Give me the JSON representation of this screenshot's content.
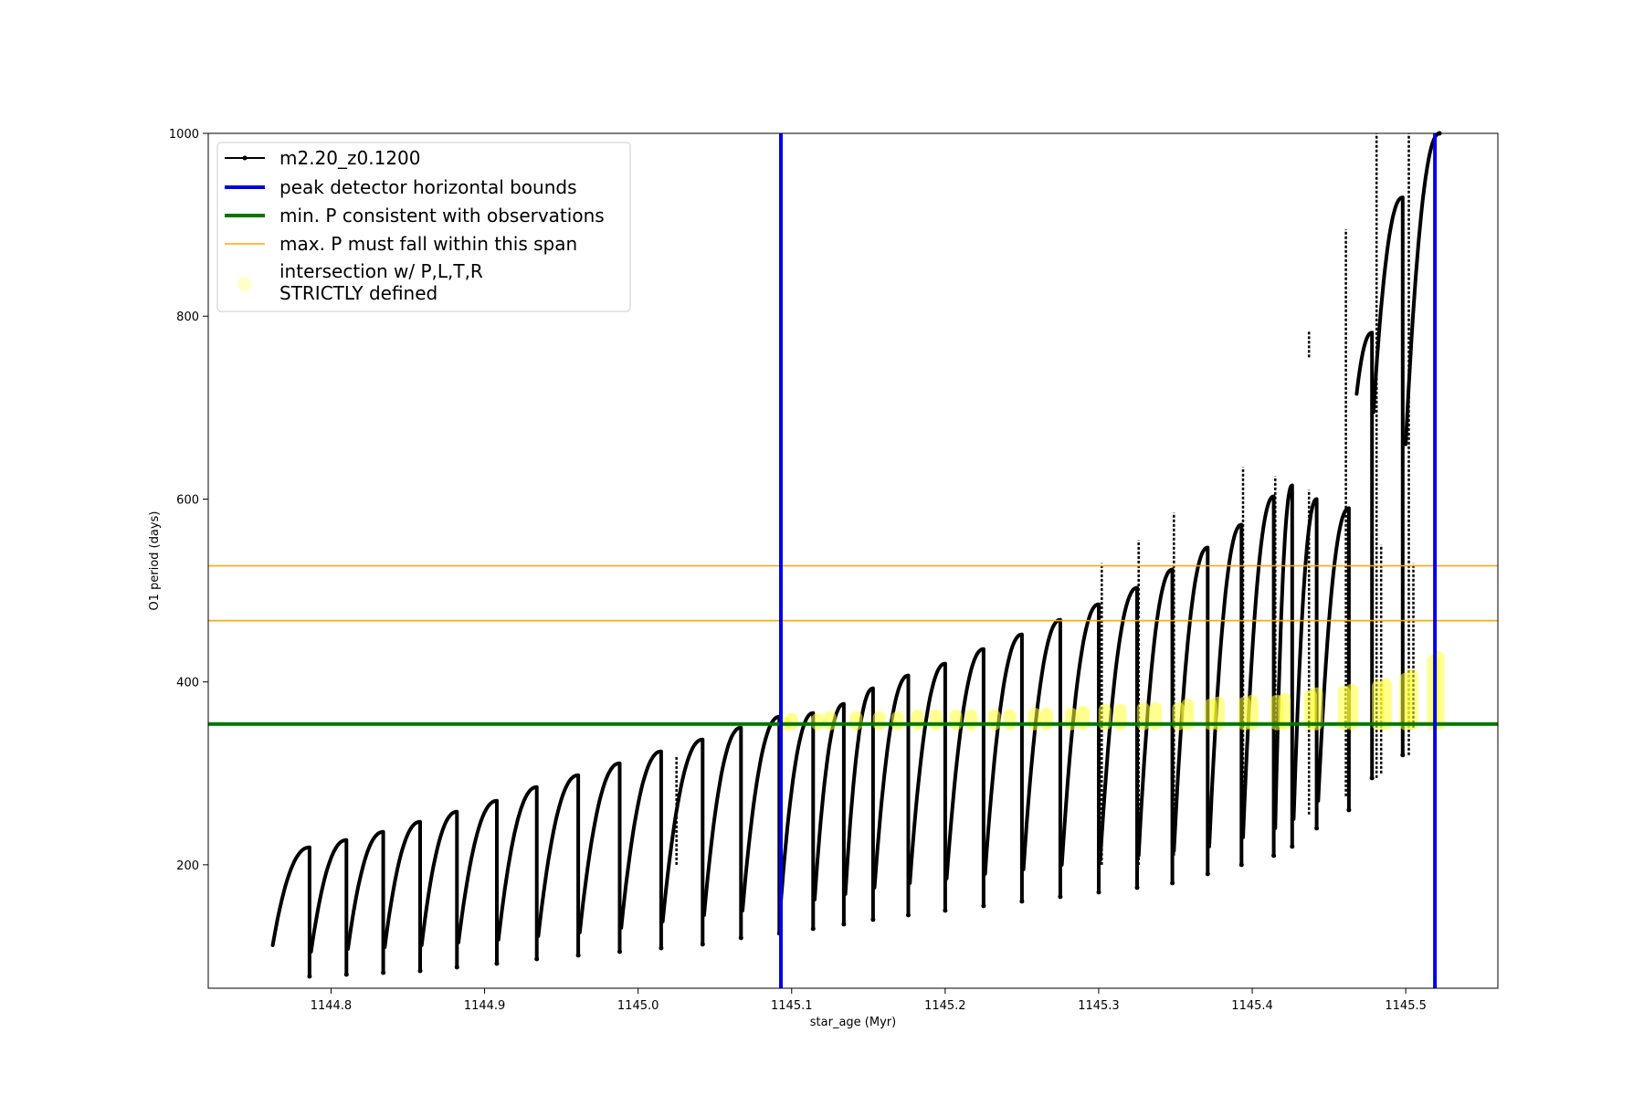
{
  "chart_data": {
    "type": "line",
    "title": "",
    "xlabel": "star_age (Myr)",
    "ylabel": "O1 period (days)",
    "xlim": [
      1144.72,
      1145.56
    ],
    "ylim": [
      65,
      1000
    ],
    "x_ticks": [
      "1144.8",
      "1144.9",
      "1145.0",
      "1145.1",
      "1145.2",
      "1145.3",
      "1145.4",
      "1145.5"
    ],
    "y_ticks": [
      "200",
      "400",
      "600",
      "800",
      "1000"
    ],
    "grid": false,
    "legend_position": "upper-left",
    "legend": [
      {
        "label": "m2.20_z0.1200",
        "style": "line-marker",
        "color": "#000000"
      },
      {
        "label": "peak detector horizontal bounds",
        "style": "thick-line",
        "color": "#0000ee"
      },
      {
        "label": "min. P consistent with observations",
        "style": "thick-line",
        "color": "#007700"
      },
      {
        "label": "max. P must fall within this span",
        "style": "thin-line",
        "color": "#ffa500"
      },
      {
        "label": "intersection w/ P,L,T,R",
        "label_line2": "STRICTLY defined",
        "style": "marker",
        "color": "#ffff66"
      }
    ],
    "series": [
      {
        "name": "m2.20_z0.1200",
        "color": "#000000",
        "note_pulses": "sawtooth: each pulse rises from start to peak, drops to dip, then restarts",
        "pulses": [
          {
            "x_start": 1144.762,
            "x_end": 1144.786,
            "start": 112,
            "peak": 219,
            "dip": 78
          },
          {
            "x_start": 1144.787,
            "x_end": 1144.81,
            "start": 105,
            "peak": 227,
            "dip": 80
          },
          {
            "x_start": 1144.811,
            "x_end": 1144.834,
            "start": 108,
            "peak": 236,
            "dip": 82
          },
          {
            "x_start": 1144.835,
            "x_end": 1144.858,
            "start": 110,
            "peak": 247,
            "dip": 84
          },
          {
            "x_start": 1144.859,
            "x_end": 1144.882,
            "start": 112,
            "peak": 258,
            "dip": 88
          },
          {
            "x_start": 1144.883,
            "x_end": 1144.908,
            "start": 115,
            "peak": 270,
            "dip": 92
          },
          {
            "x_start": 1144.909,
            "x_end": 1144.934,
            "start": 118,
            "peak": 285,
            "dip": 97
          },
          {
            "x_start": 1144.935,
            "x_end": 1144.961,
            "start": 122,
            "peak": 298,
            "dip": 101
          },
          {
            "x_start": 1144.962,
            "x_end": 1144.988,
            "start": 126,
            "peak": 311,
            "dip": 105
          },
          {
            "x_start": 1144.989,
            "x_end": 1145.015,
            "start": 131,
            "peak": 324,
            "dip": 109
          },
          {
            "x_start": 1145.016,
            "x_end": 1145.042,
            "start": 138,
            "peak": 337,
            "dip": 113
          },
          {
            "x_start": 1145.043,
            "x_end": 1145.067,
            "start": 145,
            "peak": 350,
            "dip": 120
          },
          {
            "x_start": 1145.068,
            "x_end": 1145.092,
            "start": 150,
            "peak": 362,
            "dip": 125
          },
          {
            "x_start": 1145.093,
            "x_end": 1145.114,
            "start": 160,
            "peak": 366,
            "dip": 130
          },
          {
            "x_start": 1145.115,
            "x_end": 1145.134,
            "start": 162,
            "peak": 376,
            "dip": 135
          },
          {
            "x_start": 1145.135,
            "x_end": 1145.153,
            "start": 168,
            "peak": 393,
            "dip": 140
          },
          {
            "x_start": 1145.154,
            "x_end": 1145.176,
            "start": 175,
            "peak": 407,
            "dip": 145
          },
          {
            "x_start": 1145.177,
            "x_end": 1145.2,
            "start": 180,
            "peak": 420,
            "dip": 150
          },
          {
            "x_start": 1145.201,
            "x_end": 1145.225,
            "start": 185,
            "peak": 436,
            "dip": 155
          },
          {
            "x_start": 1145.226,
            "x_end": 1145.25,
            "start": 190,
            "peak": 452,
            "dip": 160
          },
          {
            "x_start": 1145.251,
            "x_end": 1145.275,
            "start": 195,
            "peak": 468,
            "dip": 165
          },
          {
            "x_start": 1145.276,
            "x_end": 1145.3,
            "start": 200,
            "peak": 485,
            "dip": 170
          },
          {
            "x_start": 1145.301,
            "x_end": 1145.325,
            "start": 205,
            "peak": 503,
            "dip": 175
          },
          {
            "x_start": 1145.326,
            "x_end": 1145.348,
            "start": 210,
            "peak": 523,
            "dip": 180
          },
          {
            "x_start": 1145.349,
            "x_end": 1145.371,
            "start": 215,
            "peak": 547,
            "dip": 190
          },
          {
            "x_start": 1145.372,
            "x_end": 1145.393,
            "start": 220,
            "peak": 572,
            "dip": 200
          },
          {
            "x_start": 1145.394,
            "x_end": 1145.414,
            "start": 230,
            "peak": 603,
            "dip": 210
          },
          {
            "x_start": 1145.415,
            "x_end": 1145.426,
            "start": 240,
            "peak": 615,
            "dip": 220
          },
          {
            "x_start": 1145.427,
            "x_end": 1145.442,
            "start": 250,
            "peak": 600,
            "dip": 240
          },
          {
            "x_start": 1145.443,
            "x_end": 1145.463,
            "start": 270,
            "peak": 590,
            "dip": 260
          },
          {
            "x_start": 1145.468,
            "x_end": 1145.478,
            "start": 715,
            "peak": 782,
            "dip": 295
          },
          {
            "x_start": 1145.479,
            "x_end": 1145.498,
            "start": 695,
            "peak": 930,
            "dip": 320
          },
          {
            "x_start": 1145.5,
            "x_end": 1145.522,
            "start": 660,
            "peak": 1000,
            "dip": 1000
          }
        ],
        "spikes": [
          {
            "x": 1145.025,
            "low": 200,
            "high": 320
          },
          {
            "x": 1145.302,
            "low": 200,
            "high": 530
          },
          {
            "x": 1145.326,
            "low": 200,
            "high": 555
          },
          {
            "x": 1145.349,
            "low": 210,
            "high": 585
          },
          {
            "x": 1145.394,
            "low": 230,
            "high": 635
          },
          {
            "x": 1145.415,
            "low": 240,
            "high": 625
          },
          {
            "x": 1145.437,
            "low": 255,
            "high": 610
          },
          {
            "x": 1145.437,
            "low": 755,
            "high": 785
          },
          {
            "x": 1145.461,
            "low": 275,
            "high": 895
          },
          {
            "x": 1145.481,
            "low": 295,
            "high": 1000
          },
          {
            "x": 1145.484,
            "low": 300,
            "high": 550
          },
          {
            "x": 1145.502,
            "low": 320,
            "high": 1000
          },
          {
            "x": 1145.505,
            "low": 350,
            "high": 530
          }
        ]
      }
    ],
    "vertical_lines": [
      {
        "x": 1145.093,
        "color": "#0000ee",
        "label": "peak detector horizontal bounds"
      },
      {
        "x": 1145.519,
        "color": "#0000ee",
        "label": "peak detector horizontal bounds"
      }
    ],
    "horizontal_lines": [
      {
        "y": 354,
        "color": "#007700",
        "label": "min. P consistent with observations"
      },
      {
        "y": 467,
        "color": "#ffa500",
        "label": "max. P must fall within this span"
      },
      {
        "y": 527,
        "color": "#ffa500",
        "label": "max. P must fall within this span"
      }
    ],
    "intersections": [
      {
        "x": 1145.096,
        "low": 354,
        "high": 362
      },
      {
        "x": 1145.1,
        "low": 354,
        "high": 366
      },
      {
        "x": 1145.117,
        "low": 354,
        "high": 366
      },
      {
        "x": 1145.125,
        "low": 354,
        "high": 368
      },
      {
        "x": 1145.142,
        "low": 354,
        "high": 368
      },
      {
        "x": 1145.157,
        "low": 354,
        "high": 368
      },
      {
        "x": 1145.169,
        "low": 354,
        "high": 368
      },
      {
        "x": 1145.182,
        "low": 354,
        "high": 370
      },
      {
        "x": 1145.194,
        "low": 354,
        "high": 370
      },
      {
        "x": 1145.207,
        "low": 354,
        "high": 370
      },
      {
        "x": 1145.217,
        "low": 354,
        "high": 370
      },
      {
        "x": 1145.232,
        "low": 354,
        "high": 370
      },
      {
        "x": 1145.242,
        "low": 354,
        "high": 370
      },
      {
        "x": 1145.258,
        "low": 354,
        "high": 372
      },
      {
        "x": 1145.266,
        "low": 354,
        "high": 372
      },
      {
        "x": 1145.282,
        "low": 354,
        "high": 372
      },
      {
        "x": 1145.29,
        "low": 354,
        "high": 374
      },
      {
        "x": 1145.304,
        "low": 354,
        "high": 376
      },
      {
        "x": 1145.314,
        "low": 354,
        "high": 376
      },
      {
        "x": 1145.329,
        "low": 354,
        "high": 378
      },
      {
        "x": 1145.337,
        "low": 354,
        "high": 378
      },
      {
        "x": 1145.352,
        "low": 354,
        "high": 378
      },
      {
        "x": 1145.358,
        "low": 354,
        "high": 382
      },
      {
        "x": 1145.373,
        "low": 354,
        "high": 382
      },
      {
        "x": 1145.378,
        "low": 354,
        "high": 384
      },
      {
        "x": 1145.395,
        "low": 354,
        "high": 384
      },
      {
        "x": 1145.4,
        "low": 354,
        "high": 386
      },
      {
        "x": 1145.416,
        "low": 354,
        "high": 386
      },
      {
        "x": 1145.421,
        "low": 354,
        "high": 388
      },
      {
        "x": 1145.438,
        "low": 354,
        "high": 392
      },
      {
        "x": 1145.442,
        "low": 354,
        "high": 394
      },
      {
        "x": 1145.46,
        "low": 354,
        "high": 396
      },
      {
        "x": 1145.465,
        "low": 354,
        "high": 398
      },
      {
        "x": 1145.482,
        "low": 354,
        "high": 402
      },
      {
        "x": 1145.487,
        "low": 354,
        "high": 404
      },
      {
        "x": 1145.5,
        "low": 354,
        "high": 410
      },
      {
        "x": 1145.504,
        "low": 354,
        "high": 414
      },
      {
        "x": 1145.518,
        "low": 354,
        "high": 430
      },
      {
        "x": 1145.521,
        "low": 354,
        "high": 434
      }
    ]
  }
}
